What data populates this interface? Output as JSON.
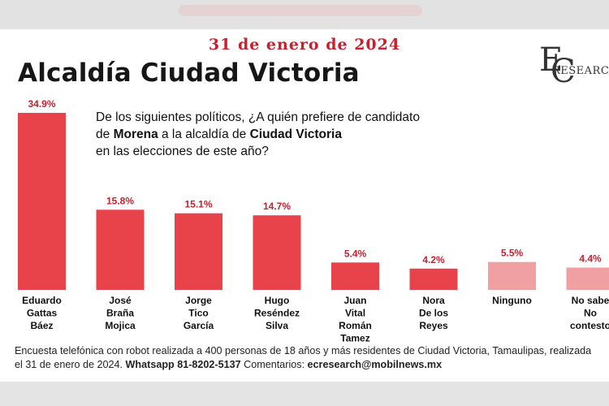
{
  "header": {
    "date": "31 de enero de 2024",
    "title": "Alcaldía Ciudad Victoria"
  },
  "logo": {
    "letter_e": "E",
    "letter_c": "C",
    "text": "RESEARCH"
  },
  "question": {
    "line1": "De los siguientes políticos, ¿A quién prefiere de candidato",
    "line2_pre": "de ",
    "line2_bold1": "Morena",
    "line2_mid": " a la alcaldía de ",
    "line2_bold2": "Ciudad Victoria",
    "line3": "en las elecciones de este año?"
  },
  "chart_data": {
    "type": "bar",
    "categories": [
      [
        "Eduardo",
        "Gattas",
        "Báez"
      ],
      [
        "José",
        "Braña",
        "Mojica"
      ],
      [
        "Jorge",
        "Tico",
        "García"
      ],
      [
        "Hugo",
        "Reséndez",
        "Silva"
      ],
      [
        "Juan",
        "Vital",
        "Román",
        "Tamez"
      ],
      [
        "Nora",
        "De los",
        "Reyes"
      ],
      [
        "Ninguno"
      ],
      [
        "No sabe",
        "No",
        "contesto"
      ]
    ],
    "values": [
      34.9,
      15.8,
      15.1,
      14.7,
      5.4,
      4.2,
      5.5,
      4.4
    ],
    "value_labels": [
      "34.9%",
      "15.8%",
      "15.1%",
      "14.7%",
      "5.4%",
      "4.2%",
      "5.5%",
      "4.4%"
    ],
    "ylim": [
      0,
      34.9
    ],
    "grid": false,
    "colors": [
      "#e8434a",
      "#e8434a",
      "#e8434a",
      "#e8434a",
      "#e8434a",
      "#e8434a",
      "#f0a0a3",
      "#f0a0a3"
    ]
  },
  "footer": {
    "line1": "Encuesta telefónica con robot realizada a 400 personas de 18 años y más residentes de Ciudad Victoria, Tamaulipas, realizada",
    "line2_a": "el 31 de enero de 2024.  ",
    "whatsapp": "Whatsapp 81-8202-5137",
    "line2_b": " Comentarios: ",
    "email": "ecresearch@mobilnews.mx"
  },
  "colors": {
    "accent_red": "#c8202f",
    "bar_red": "#e8434a",
    "bar_pink": "#f0a0a3"
  }
}
